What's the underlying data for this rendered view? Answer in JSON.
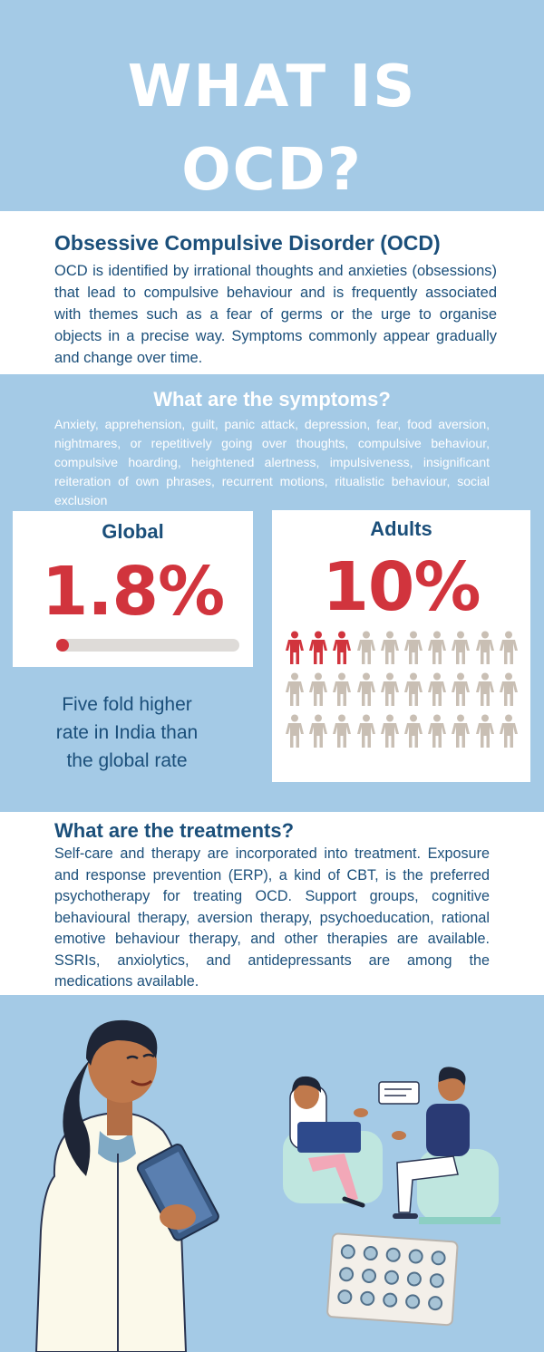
{
  "header": {
    "title_line1": "WHAT IS",
    "title_line2": "OCD?"
  },
  "intro": {
    "heading": "Obsessive Compulsive Disorder (OCD)",
    "text": "OCD is identified by irrational thoughts and anxieties (obsessions) that lead to compulsive behaviour and is frequently associated with themes such as a fear of germs or the urge to organise objects in a precise way. Symptoms commonly appear gradually and change over time."
  },
  "symptoms": {
    "heading": "What are the symptoms?",
    "text": "Anxiety, apprehension, guilt, panic attack, depression, fear, food aversion, nightmares, or repetitively going over thoughts, compulsive behaviour, compulsive hoarding, heightened alertness, impulsiveness, insignificant reiteration of own phrases, recurrent motions, ritualistic behaviour, social exclusion"
  },
  "global_stat": {
    "label": "Global",
    "value": "1.8%",
    "progress_fraction": 0.018
  },
  "india_note": {
    "line1": "Five fold higher",
    "line2": "rate in India than",
    "line3": "the global rate"
  },
  "adults_stat": {
    "label": "Adults",
    "value": "10%",
    "highlighted_people": 3,
    "total_people": 30
  },
  "treatments": {
    "heading": "What are the treatments?",
    "text": "Self-care and therapy are incorporated into treatment. Exposure and response prevention (ERP), a kind of CBT, is the preferred psychotherapy for treating OCD. Support groups, cognitive behavioural therapy, aversion therapy, psychoeducation, rational emotive behaviour therapy, and other therapies are available. SSRIs, anxiolytics, and antidepressants are among the medications available."
  },
  "colors": {
    "background": "#a4cae6",
    "heading_blue": "#1b4f7a",
    "accent_red": "#d1343d",
    "person_grey": "#c9bfb4",
    "panel_white": "#ffffff"
  },
  "icons": [
    "person-icon",
    "progress-bar",
    "doctor-illustration",
    "therapy-session-illustration",
    "pill-blister-icon",
    "speech-bubble-icon"
  ]
}
